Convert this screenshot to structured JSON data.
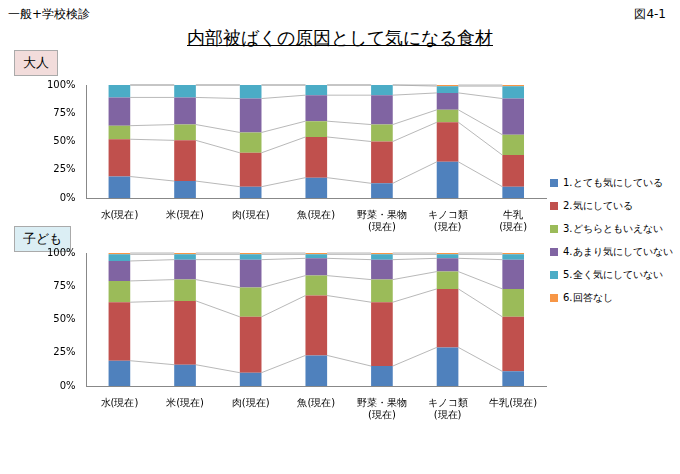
{
  "header": {
    "left": "一般+学校検診",
    "right": "図4-1"
  },
  "title": "内部被ばくの原因として気になる食材",
  "chart_data": [
    {
      "type": "bar",
      "subtitle": "大人",
      "stacked": true,
      "grid": false,
      "legend": "right",
      "data_labels": false,
      "categories": [
        "水(現在)",
        "米(現在)",
        "肉(現在)",
        "魚(現在)",
        "野菜・果物\n(現在)",
        "キノコ類\n(現在)",
        "牛乳\n(現在)"
      ],
      "ylim": [
        0,
        100
      ],
      "yticks": [
        {
          "value": 0,
          "label": "0%"
        },
        {
          "value": 25,
          "label": "25%"
        },
        {
          "value": 50,
          "label": "50%"
        },
        {
          "value": 75,
          "label": "75%"
        },
        {
          "value": 100,
          "label": "100%"
        }
      ],
      "series": [
        {
          "name": "1.とても気にしている",
          "color": "#4f81bd",
          "values": [
            19,
            15,
            10,
            18,
            13,
            32,
            10
          ]
        },
        {
          "name": "2.気にしている",
          "color": "#c0504d",
          "values": [
            33,
            36,
            30,
            36,
            37,
            35,
            28
          ]
        },
        {
          "name": "3.どちらともいえない",
          "color": "#9bbb59",
          "values": [
            12,
            14,
            18,
            14,
            15,
            11,
            18
          ]
        },
        {
          "name": "4.あまり気にしていない",
          "color": "#8064a2",
          "values": [
            25,
            24,
            30,
            23,
            26,
            15,
            32
          ]
        },
        {
          "name": "5.全く気にしていない",
          "color": "#4bacc6",
          "values": [
            11,
            11,
            12,
            9,
            9,
            6,
            11
          ]
        },
        {
          "name": "6.回答なし",
          "color": "#f79646",
          "values": [
            0,
            0,
            0,
            0,
            0,
            1,
            1
          ]
        }
      ]
    },
    {
      "type": "bar",
      "subtitle": "子ども",
      "stacked": true,
      "grid": false,
      "data_labels": false,
      "categories": [
        "水(現在)",
        "米(現在)",
        "肉(現在)",
        "魚(現在)",
        "野菜・果物\n(現在)",
        "キノコ類\n(現在)",
        "牛乳(現在)"
      ],
      "ylim": [
        0,
        100
      ],
      "yticks": [
        {
          "value": 0,
          "label": "0%"
        },
        {
          "value": 25,
          "label": "25%"
        },
        {
          "value": 50,
          "label": "50%"
        },
        {
          "value": 75,
          "label": "75%"
        },
        {
          "value": 100,
          "label": "100%"
        }
      ],
      "series": [
        {
          "name": "1.とても気にしている",
          "color": "#4f81bd",
          "values": [
            19,
            16,
            10,
            23,
            15,
            29,
            11
          ]
        },
        {
          "name": "2.気にしている",
          "color": "#c0504d",
          "values": [
            44,
            48,
            42,
            45,
            48,
            44,
            41
          ]
        },
        {
          "name": "3.どちらともいえない",
          "color": "#9bbb59",
          "values": [
            16,
            16,
            22,
            15,
            17,
            13,
            21
          ]
        },
        {
          "name": "4.あまり気にしていない",
          "color": "#8064a2",
          "values": [
            15,
            15,
            21,
            13,
            15,
            10,
            22
          ]
        },
        {
          "name": "5.全く気にしていない",
          "color": "#4bacc6",
          "values": [
            5,
            4,
            4,
            3,
            4,
            3,
            4
          ]
        },
        {
          "name": "6.回答なし",
          "color": "#f79646",
          "values": [
            1,
            1,
            1,
            1,
            1,
            1,
            1
          ]
        }
      ]
    }
  ]
}
